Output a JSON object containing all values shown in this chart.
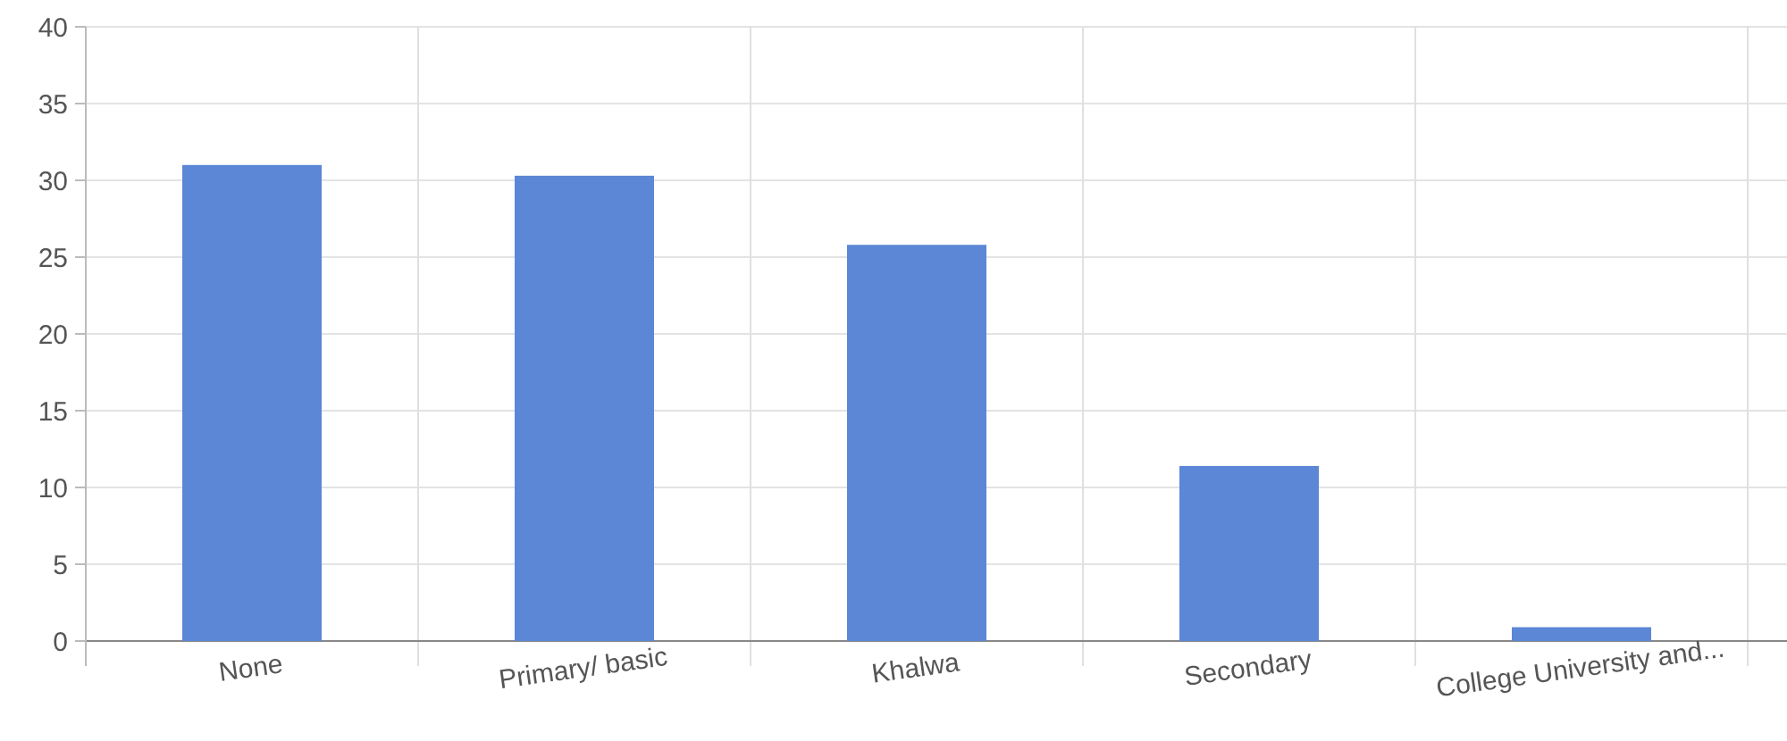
{
  "chart_data": {
    "type": "bar",
    "categories": [
      "None",
      "Primary/ basic",
      "Khalwa",
      "Secondary",
      "College University and..."
    ],
    "values": [
      31.0,
      30.3,
      25.8,
      11.4,
      0.9
    ],
    "color": "#5b87d6",
    "ylim": [
      0,
      40
    ],
    "yticks": [
      0,
      5,
      10,
      15,
      20,
      25,
      30,
      35,
      40
    ],
    "grid": true
  }
}
